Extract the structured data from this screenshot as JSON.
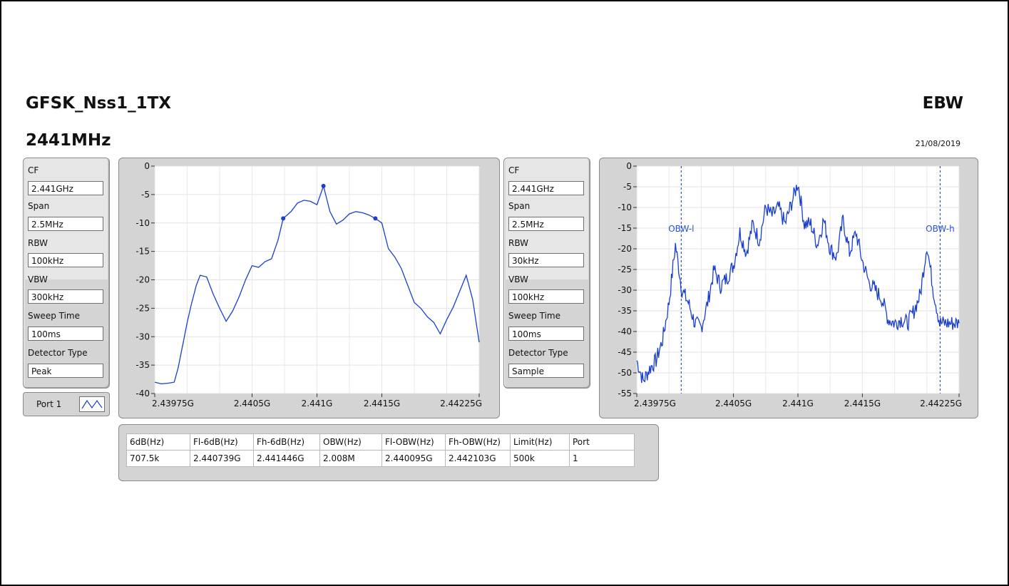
{
  "header": {
    "title": "GFSK_Nss1_1TX",
    "frequency": "2441MHz",
    "mode": "EBW",
    "date": "21/08/2019"
  },
  "settings_left": [
    {
      "label": "CF",
      "value": "2.441GHz"
    },
    {
      "label": "Span",
      "value": "2.5MHz"
    },
    {
      "label": "RBW",
      "value": "100kHz"
    },
    {
      "label": "VBW",
      "value": "300kHz"
    },
    {
      "label": "Sweep Time",
      "value": "100ms"
    },
    {
      "label": "Detector Type",
      "value": "Peak"
    }
  ],
  "settings_right": [
    {
      "label": "CF",
      "value": "2.441GHz"
    },
    {
      "label": "Span",
      "value": "2.5MHz"
    },
    {
      "label": "RBW",
      "value": "30kHz"
    },
    {
      "label": "VBW",
      "value": "100kHz"
    },
    {
      "label": "Sweep Time",
      "value": "100ms"
    },
    {
      "label": "Detector Type",
      "value": "Sample"
    }
  ],
  "port": {
    "label": "Port 1"
  },
  "results_table": {
    "headers": [
      "6dB(Hz)",
      "Fl-6dB(Hz)",
      "Fh-6dB(Hz)",
      "OBW(Hz)",
      "Fl-OBW(Hz)",
      "Fh-OBW(Hz)",
      "Limit(Hz)",
      "Port"
    ],
    "rows": [
      [
        "707.5k",
        "2.440739G",
        "2.441446G",
        "2.008M",
        "2.440095G",
        "2.442103G",
        "500k",
        "1"
      ]
    ]
  },
  "colors": {
    "trace": "#1a3fcf",
    "marker_line": "#2a4fd8",
    "panel": "#d4d4d4"
  },
  "chart_data": [
    {
      "type": "line",
      "title": "",
      "xlabel": "",
      "ylabel": "",
      "xlim": [
        2.43975,
        2.44225
      ],
      "ylim": [
        -40,
        0
      ],
      "x_ticks": [
        2.43975,
        2.4405,
        2.441,
        2.4415,
        2.44225
      ],
      "x_tick_labels": [
        "2.43975G",
        "2.4405G",
        "2.441G",
        "2.4415G",
        "2.44225G"
      ],
      "y_ticks": [
        0,
        -5,
        -10,
        -15,
        -20,
        -25,
        -30,
        -35,
        -40
      ],
      "y_tick_labels": [
        "0",
        "-5",
        "-10",
        "-15",
        "-20",
        "-25",
        "-30",
        "-35",
        "-40"
      ],
      "grid": true,
      "series": [
        {
          "x": [
            2.43975,
            2.4398,
            2.43985,
            2.4399,
            2.43993,
            2.43997,
            2.44,
            2.44003,
            2.44007,
            2.4401,
            2.44015,
            2.4402,
            2.44025,
            2.4403,
            2.44035,
            2.4404,
            2.44045,
            2.4405,
            2.44055,
            2.4406,
            2.44065,
            2.4407,
            2.44074,
            2.4408,
            2.44085,
            2.4409,
            2.44095,
            2.441,
            2.44105,
            2.4411,
            2.44115,
            2.4412,
            2.44125,
            2.4413,
            2.44135,
            2.4414,
            2.44145,
            2.4415,
            2.44155,
            2.4416,
            2.44165,
            2.4417,
            2.44175,
            2.4418,
            2.44185,
            2.4419,
            2.44195,
            2.442,
            2.44205,
            2.4421,
            2.44215,
            2.4422,
            2.44225
          ],
          "y": [
            -38.0,
            -38.3,
            -38.2,
            -38.0,
            -35.5,
            -31.0,
            -27.5,
            -24.5,
            -21.0,
            -19.2,
            -19.5,
            -22.5,
            -25.0,
            -27.3,
            -25.5,
            -23.0,
            -20.0,
            -17.5,
            -17.8,
            -16.8,
            -16.3,
            -13.0,
            -9.2,
            -8.0,
            -6.5,
            -6.0,
            -6.2,
            -6.8,
            -3.5,
            -8.0,
            -10.2,
            -9.5,
            -8.4,
            -8.0,
            -8.2,
            -8.6,
            -9.2,
            -10.0,
            -14.5,
            -16.0,
            -18.0,
            -21.0,
            -24.0,
            -25.0,
            -26.5,
            -27.5,
            -29.5,
            -27.0,
            -24.8,
            -22.0,
            -19.2,
            -23.5,
            -31.0
          ],
          "markers": [
            {
              "x": 2.44074,
              "y": -9.2
            },
            {
              "x": 2.44105,
              "y": -3.5
            },
            {
              "x": 2.44145,
              "y": -9.2
            }
          ]
        }
      ]
    },
    {
      "type": "line",
      "title": "",
      "xlabel": "",
      "ylabel": "",
      "xlim": [
        2.43975,
        2.44225
      ],
      "ylim": [
        -55,
        0
      ],
      "x_ticks": [
        2.43975,
        2.4405,
        2.441,
        2.4415,
        2.44225
      ],
      "x_tick_labels": [
        "2.43975G",
        "2.4405G",
        "2.441G",
        "2.4415G",
        "2.44225G"
      ],
      "y_ticks": [
        0,
        -5,
        -10,
        -15,
        -20,
        -25,
        -30,
        -35,
        -40,
        -45,
        -50,
        -55
      ],
      "y_tick_labels": [
        "0",
        "-5",
        "-10",
        "-15",
        "-20",
        "-25",
        "-30",
        "-35",
        "-40",
        "-45",
        "-50",
        "-55"
      ],
      "grid": true,
      "annotations": [
        {
          "text": "OBW-l",
          "x": 2.440095
        },
        {
          "text": "OBW-h",
          "x": 2.442103
        }
      ],
      "series": [
        {
          "x": [
            2.43975,
            2.4398,
            2.43985,
            2.4399,
            2.43995,
            2.44,
            2.44005,
            2.4401,
            2.44015,
            2.4402,
            2.44025,
            2.4403,
            2.44035,
            2.4404,
            2.44045,
            2.4405,
            2.44055,
            2.4406,
            2.44065,
            2.4407,
            2.44075,
            2.4408,
            2.44085,
            2.4409,
            2.44095,
            2.441,
            2.44105,
            2.4411,
            2.44115,
            2.4412,
            2.44125,
            2.4413,
            2.44135,
            2.4414,
            2.44145,
            2.4415,
            2.44155,
            2.4416,
            2.44165,
            2.4417,
            2.44175,
            2.4418,
            2.44185,
            2.4419,
            2.44195,
            2.442,
            2.44205,
            2.4421,
            2.44215,
            2.4422,
            2.44225
          ],
          "y": [
            -47,
            -52,
            -49,
            -47,
            -42,
            -33,
            -19,
            -30,
            -33,
            -38,
            -39,
            -33,
            -25,
            -29,
            -27,
            -24,
            -16,
            -21,
            -14,
            -18,
            -10,
            -12,
            -10,
            -14,
            -9,
            -4,
            -14,
            -14,
            -19,
            -13,
            -20,
            -22,
            -13,
            -21,
            -16,
            -23,
            -28,
            -30,
            -32,
            -37,
            -38,
            -37,
            -38,
            -35,
            -31,
            -19,
            -30,
            -38,
            -38,
            -38,
            -38
          ]
        }
      ]
    }
  ]
}
